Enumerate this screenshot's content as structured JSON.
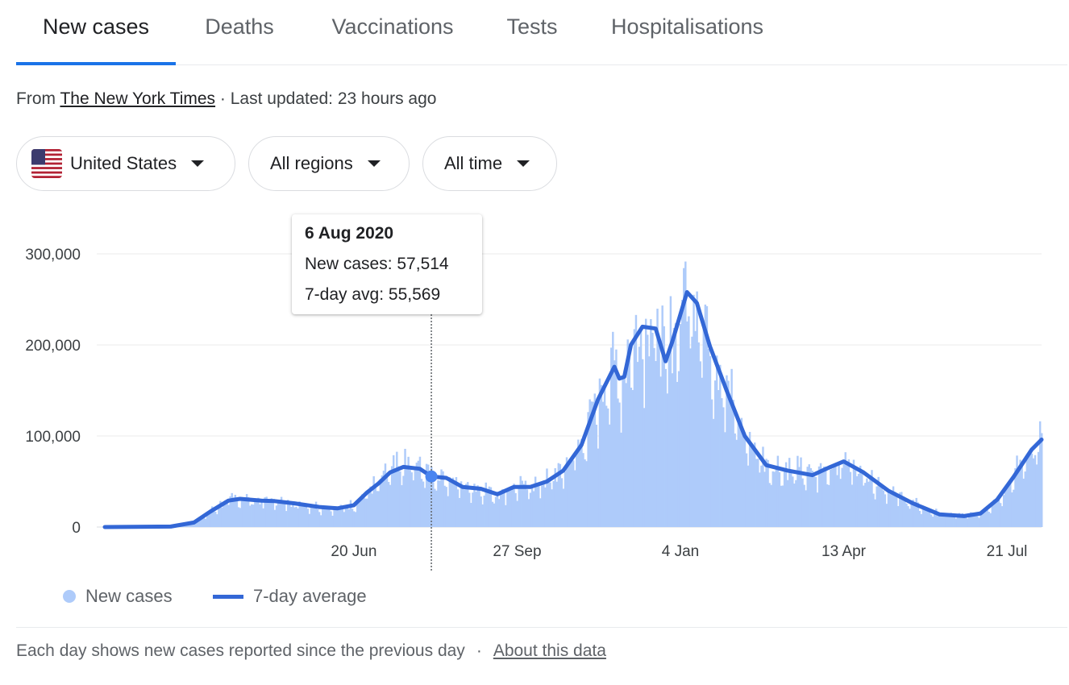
{
  "tabs": [
    "New cases",
    "Deaths",
    "Vaccinations",
    "Tests",
    "Hospitalisations"
  ],
  "source": {
    "prefix": "From",
    "publisher": "The New York Times",
    "separator": "·",
    "updated": "Last updated: 23 hours ago"
  },
  "filters": {
    "country": "United States",
    "region": "All regions",
    "time": "All time"
  },
  "tooltip": {
    "date": "6 Aug 2020",
    "new_cases": "New cases: 57,514",
    "avg": "7-day avg: 55,569"
  },
  "legend": {
    "bars": "New cases",
    "line": "7-day average"
  },
  "footer": {
    "note": "Each day shows new cases reported since the previous day",
    "separator": "·",
    "link": "About this data"
  },
  "colors": {
    "bar": "#aecbfa",
    "line": "#3367d6",
    "accent": "#1a73e8"
  },
  "chart_data": {
    "type": "bar",
    "x_axis": "date",
    "date_range": [
      "2020-01-21",
      "2021-08-11"
    ],
    "ylim": [
      0,
      300000
    ],
    "yticks": [
      0,
      100000,
      200000,
      300000
    ],
    "ytick_labels": [
      "0",
      "100,000",
      "200,000",
      "300,000"
    ],
    "xticks": [
      {
        "date": "2020-06-20",
        "label": "20 Jun"
      },
      {
        "date": "2020-09-27",
        "label": "27 Sep"
      },
      {
        "date": "2021-01-04",
        "label": "4 Jan"
      },
      {
        "date": "2021-04-13",
        "label": "13 Apr"
      },
      {
        "date": "2021-07-21",
        "label": "21 Jul"
      }
    ],
    "grid": true,
    "series": [
      {
        "name": "New cases",
        "type": "bar"
      },
      {
        "name": "7-day average",
        "type": "line"
      }
    ],
    "seven_day_average": [
      {
        "date": "2020-01-21",
        "value": 0
      },
      {
        "date": "2020-03-01",
        "value": 500
      },
      {
        "date": "2020-03-15",
        "value": 5000
      },
      {
        "date": "2020-03-25",
        "value": 17000
      },
      {
        "date": "2020-04-05",
        "value": 29000
      },
      {
        "date": "2020-04-12",
        "value": 31000
      },
      {
        "date": "2020-04-25",
        "value": 29000
      },
      {
        "date": "2020-05-03",
        "value": 28500
      },
      {
        "date": "2020-05-15",
        "value": 26000
      },
      {
        "date": "2020-05-30",
        "value": 22000
      },
      {
        "date": "2020-06-10",
        "value": 20500
      },
      {
        "date": "2020-06-20",
        "value": 24000
      },
      {
        "date": "2020-06-28",
        "value": 38000
      },
      {
        "date": "2020-07-05",
        "value": 48000
      },
      {
        "date": "2020-07-12",
        "value": 60000
      },
      {
        "date": "2020-07-20",
        "value": 66000
      },
      {
        "date": "2020-07-30",
        "value": 64000
      },
      {
        "date": "2020-08-06",
        "value": 55569
      },
      {
        "date": "2020-08-15",
        "value": 54000
      },
      {
        "date": "2020-08-25",
        "value": 44000
      },
      {
        "date": "2020-09-05",
        "value": 42000
      },
      {
        "date": "2020-09-15",
        "value": 36000
      },
      {
        "date": "2020-09-25",
        "value": 44000
      },
      {
        "date": "2020-10-05",
        "value": 44000
      },
      {
        "date": "2020-10-15",
        "value": 50000
      },
      {
        "date": "2020-10-25",
        "value": 62000
      },
      {
        "date": "2020-11-05",
        "value": 90000
      },
      {
        "date": "2020-11-15",
        "value": 140000
      },
      {
        "date": "2020-11-25",
        "value": 176000
      },
      {
        "date": "2020-11-28",
        "value": 163000
      },
      {
        "date": "2020-12-01",
        "value": 165000
      },
      {
        "date": "2020-12-05",
        "value": 200000
      },
      {
        "date": "2020-12-12",
        "value": 220000
      },
      {
        "date": "2020-12-20",
        "value": 218000
      },
      {
        "date": "2020-12-26",
        "value": 182000
      },
      {
        "date": "2020-12-30",
        "value": 203000
      },
      {
        "date": "2021-01-08",
        "value": 258000
      },
      {
        "date": "2021-01-14",
        "value": 246000
      },
      {
        "date": "2021-01-22",
        "value": 198000
      },
      {
        "date": "2021-02-01",
        "value": 150000
      },
      {
        "date": "2021-02-12",
        "value": 100000
      },
      {
        "date": "2021-02-25",
        "value": 68000
      },
      {
        "date": "2021-03-10",
        "value": 62000
      },
      {
        "date": "2021-03-25",
        "value": 57000
      },
      {
        "date": "2021-04-05",
        "value": 66000
      },
      {
        "date": "2021-04-13",
        "value": 72000
      },
      {
        "date": "2021-04-25",
        "value": 60000
      },
      {
        "date": "2021-05-10",
        "value": 40000
      },
      {
        "date": "2021-05-25",
        "value": 26000
      },
      {
        "date": "2021-06-10",
        "value": 14000
      },
      {
        "date": "2021-06-25",
        "value": 12000
      },
      {
        "date": "2021-07-05",
        "value": 15000
      },
      {
        "date": "2021-07-15",
        "value": 30000
      },
      {
        "date": "2021-07-25",
        "value": 55000
      },
      {
        "date": "2021-08-05",
        "value": 85000
      },
      {
        "date": "2021-08-11",
        "value": 96000
      }
    ],
    "highlight": {
      "date": "2020-08-06",
      "new_cases": 57514,
      "seven_day_avg": 55569
    }
  }
}
